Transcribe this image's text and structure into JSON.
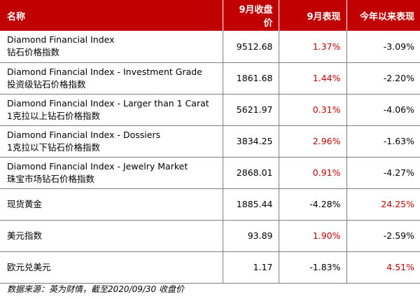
{
  "colors": {
    "header_bg": "#c00000",
    "header_text": "#ffffff",
    "positive": "#c00000",
    "negative": "#000000",
    "rule": "#7f7f7f"
  },
  "table": {
    "headers": {
      "name": "名称",
      "close": "9月收盘价",
      "month": "9月表现",
      "ytd": "今年以来表现"
    },
    "rows": [
      {
        "en": "Diamond Financial Index",
        "zh": "钻石价格指数",
        "close": "9512.68",
        "month": "1.37%",
        "month_dir": "pos",
        "ytd": "-3.09%",
        "ytd_dir": "neg"
      },
      {
        "en": "Diamond Financial Index - Investment Grade",
        "zh": "投资级钻石价格指数",
        "close": "1861.68",
        "month": "1.44%",
        "month_dir": "pos",
        "ytd": "-2.20%",
        "ytd_dir": "neg"
      },
      {
        "en": "Diamond Financial Index - Larger than 1 Carat",
        "zh": "1克拉以上钻石价格指数",
        "close": "5621.97",
        "month": "0.31%",
        "month_dir": "pos",
        "ytd": "-4.06%",
        "ytd_dir": "neg"
      },
      {
        "en": "Diamond Financial Index - Dossiers",
        "zh": "1克拉以下钻石价格指数",
        "close": "3834.25",
        "month": "2.96%",
        "month_dir": "pos",
        "ytd": "-1.63%",
        "ytd_dir": "neg"
      },
      {
        "en": "Diamond Financial Index - Jewelry Market",
        "zh": "珠宝市场钻石价格指数",
        "close": "2868.01",
        "month": "0.91%",
        "month_dir": "pos",
        "ytd": "-4.27%",
        "ytd_dir": "neg"
      },
      {
        "en": "",
        "zh": "现货黄金",
        "close": "1885.44",
        "month": "-4.28%",
        "month_dir": "neg",
        "ytd": "24.25%",
        "ytd_dir": "pos"
      },
      {
        "en": "",
        "zh": "美元指数",
        "close": "93.89",
        "month": "1.90%",
        "month_dir": "pos",
        "ytd": "-2.59%",
        "ytd_dir": "neg"
      },
      {
        "en": "",
        "zh": "欧元兑美元",
        "close": "1.17",
        "month": "-1.83%",
        "month_dir": "neg",
        "ytd": "4.51%",
        "ytd_dir": "pos"
      }
    ]
  },
  "footer": {
    "source": "数据来源：英为财情，截至2020/09/30 收盘价"
  }
}
